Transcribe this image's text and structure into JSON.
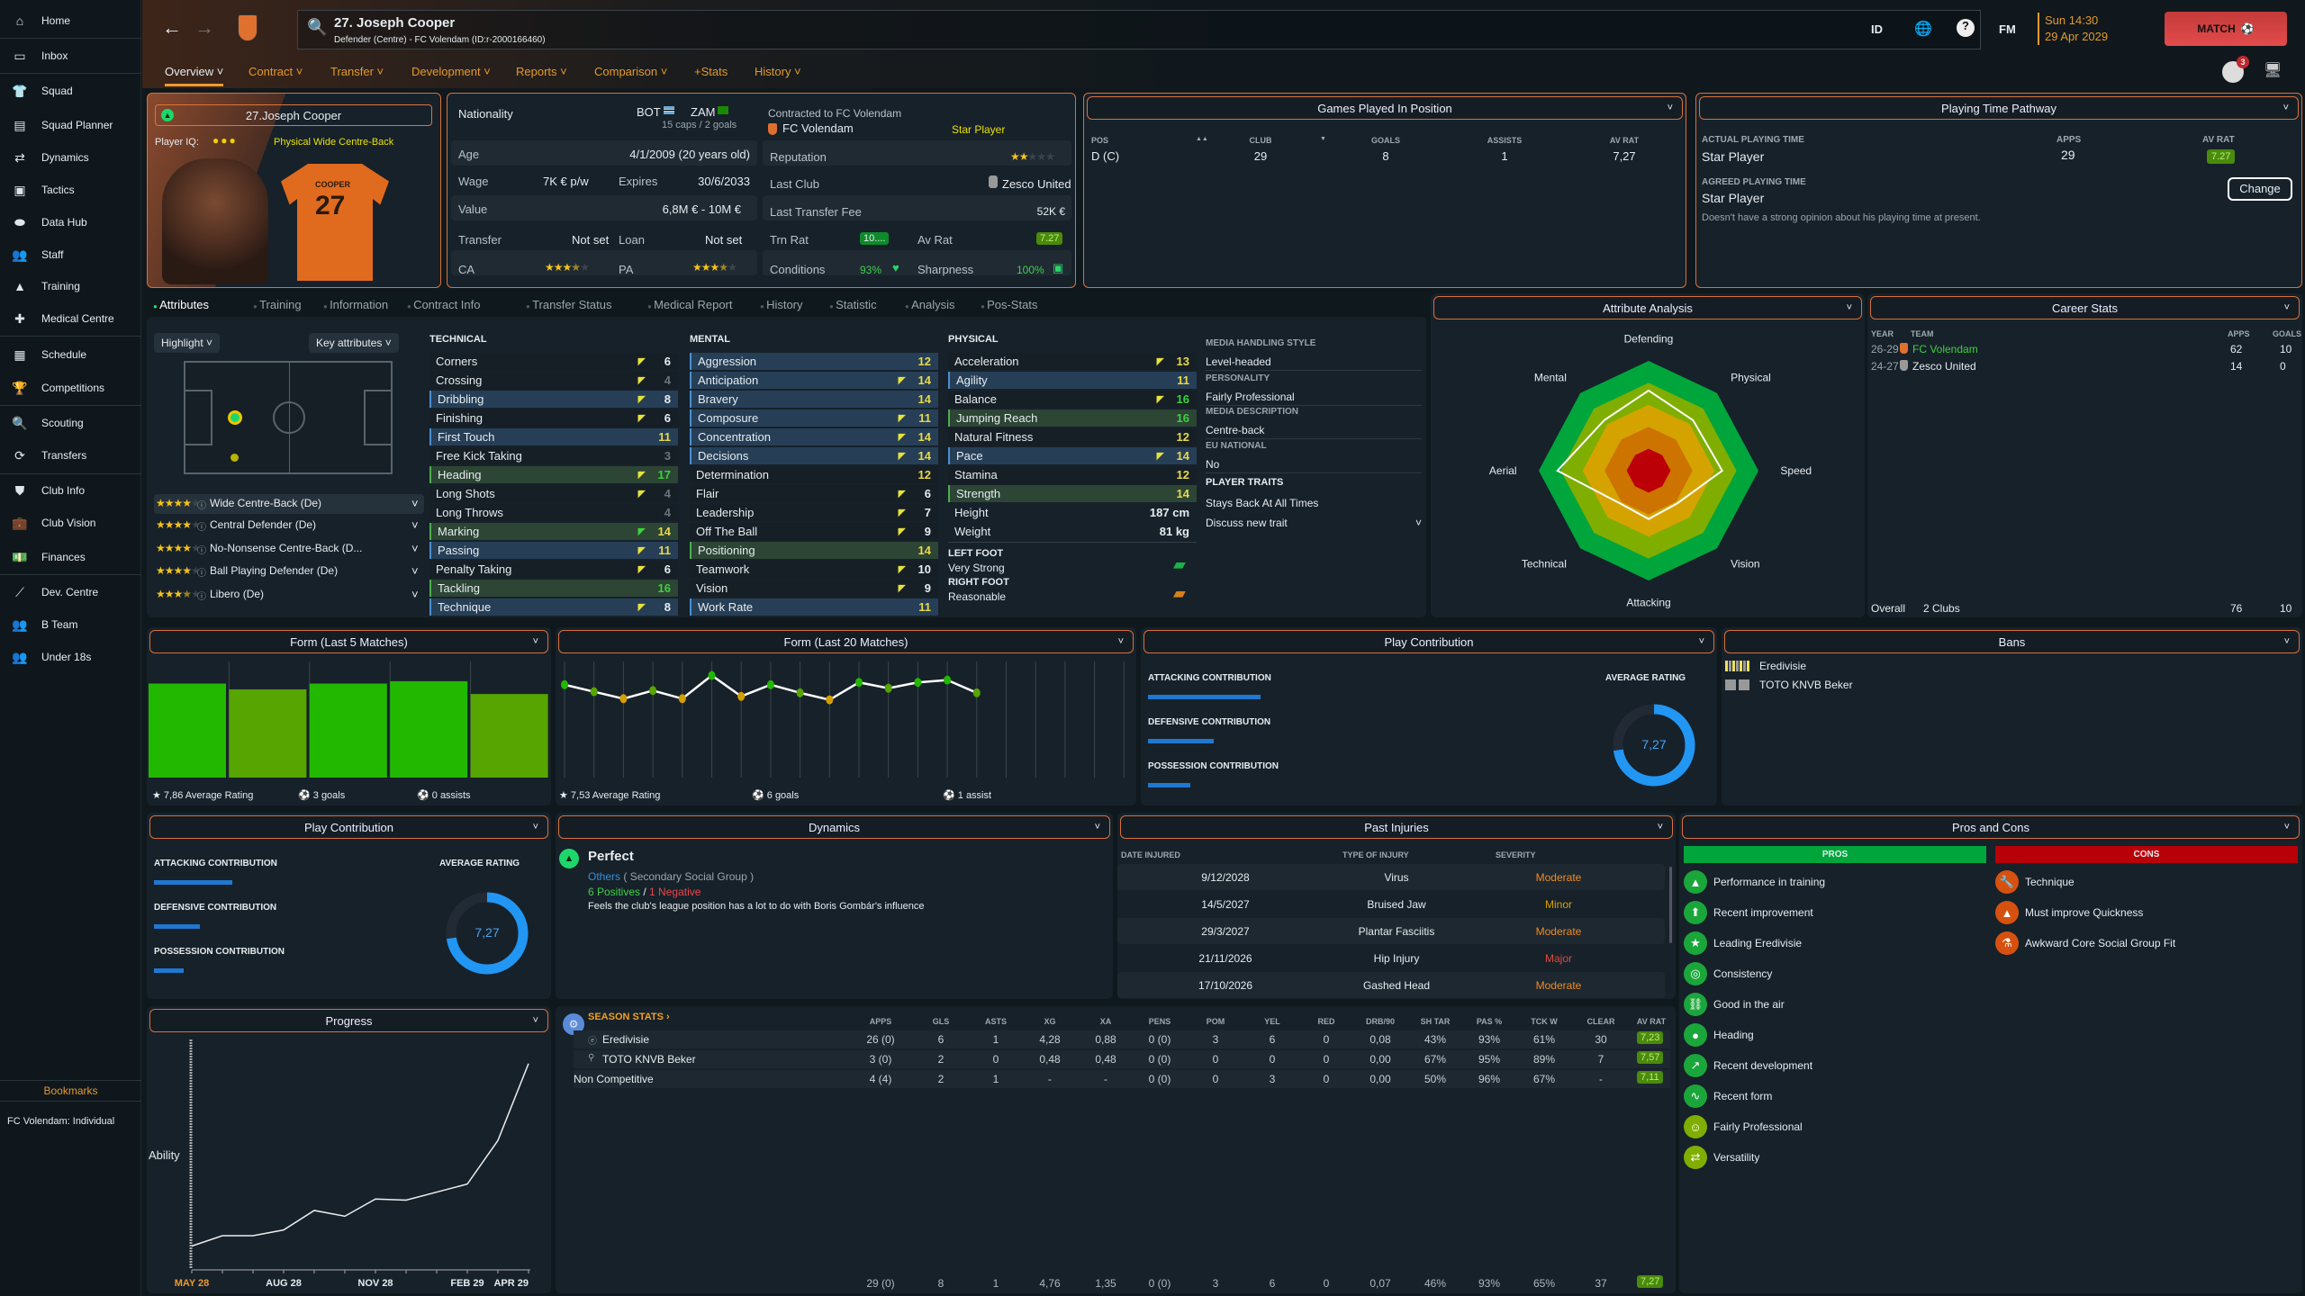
{
  "sidebar": {
    "items": [
      {
        "label": "Home",
        "icon": "home-icon",
        "glyph": "⌂"
      },
      {
        "label": "Inbox",
        "icon": "inbox-icon",
        "glyph": "▭"
      },
      {
        "label": "Squad",
        "icon": "shirt-icon",
        "glyph": "👕"
      },
      {
        "label": "Squad Planner",
        "icon": "clipboard-icon",
        "glyph": "▤"
      },
      {
        "label": "Dynamics",
        "icon": "dynamics-icon",
        "glyph": "⇄"
      },
      {
        "label": "Tactics",
        "icon": "tactics-icon",
        "glyph": "▣"
      },
      {
        "label": "Data Hub",
        "icon": "data-hub-icon",
        "glyph": "⬬"
      },
      {
        "label": "Staff",
        "icon": "staff-icon",
        "glyph": "👥"
      },
      {
        "label": "Training",
        "icon": "training-icon",
        "glyph": "▲"
      },
      {
        "label": "Medical Centre",
        "icon": "medical-icon",
        "glyph": "✚"
      },
      {
        "label": "Schedule",
        "icon": "calendar-icon",
        "glyph": "▦"
      },
      {
        "label": "Competitions",
        "icon": "trophy-icon",
        "glyph": "🏆"
      },
      {
        "label": "Scouting",
        "icon": "search-icon",
        "glyph": "🔍"
      },
      {
        "label": "Transfers",
        "icon": "transfers-icon",
        "glyph": "⟳"
      },
      {
        "label": "Club Info",
        "icon": "shield-icon",
        "glyph": "⛊"
      },
      {
        "label": "Club Vision",
        "icon": "briefcase-icon",
        "glyph": "💼"
      },
      {
        "label": "Finances",
        "icon": "money-icon",
        "glyph": "💵"
      },
      {
        "label": "Dev. Centre",
        "icon": "dev-centre-icon",
        "glyph": "⟋"
      },
      {
        "label": "B Team",
        "icon": "b-team-icon",
        "glyph": "👥"
      },
      {
        "label": "Under 18s",
        "icon": "u18-icon",
        "glyph": "👥"
      }
    ],
    "bookmarks_title": "Bookmarks",
    "bookmark": "FC Volendam: Individual"
  },
  "header": {
    "title": "27. Joseph Cooper",
    "subtitle": "Defender (Centre) - FC Volendam (ID:r-2000166460)",
    "id_label": "ID",
    "fm_label": "FM",
    "time": "Sun 14:30",
    "date": "29 Apr 2029",
    "match_label": "MATCH",
    "notification_count": "3",
    "tabs": [
      "Overview ˅",
      "Contract ˅",
      "Transfer ˅",
      "Development ˅",
      "Reports ˅",
      "Comparison ˅",
      "+Stats",
      "History ˅"
    ]
  },
  "player_card": {
    "name": "27.Joseph Cooper",
    "iq_label": "Player IQ:",
    "iq_dots": 3,
    "role": "Physical Wide Centre-Back",
    "shirt_name": "COOPER",
    "shirt_number": "27"
  },
  "info": {
    "nationality_label": "Nationality",
    "nat1": "BOT",
    "nat2": "ZAM",
    "caps": "15 caps / 2 goals",
    "contracted": "Contracted to FC Volendam",
    "club": "FC Volendam",
    "status": "Star Player",
    "age_label": "Age",
    "age": "4/1/2009 (20 years old)",
    "reputation_label": "Reputation",
    "reputation_stars": 2,
    "wage_label": "Wage",
    "wage": "7K € p/w",
    "expires_label": "Expires",
    "expires": "30/6/2033",
    "last_club_label": "Last Club",
    "last_club": "Zesco United",
    "value_label": "Value",
    "value": "6,8M € - 10M €",
    "fee_label": "Last Transfer Fee",
    "fee": "52K €",
    "transfer_label": "Transfer",
    "transfer": "Not set",
    "loan_label": "Loan",
    "loan": "Not set",
    "trn_label": "Trn Rat",
    "trn": "10....",
    "avrat_label": "Av Rat",
    "avrat": "7.27",
    "ca_label": "CA",
    "ca_stars": 3.5,
    "pa_label": "PA",
    "pa_stars": 3.5,
    "conditions_label": "Conditions",
    "conditions": "93%",
    "sharpness_label": "Sharpness",
    "sharpness": "100%"
  },
  "games_position": {
    "title": "Games Played In Position",
    "headers": [
      "POS",
      "CLUB",
      "GOALS",
      "ASSISTS",
      "AV RAT"
    ],
    "row": [
      "D (C)",
      "29",
      "8",
      "1",
      "7,27"
    ]
  },
  "playing_time": {
    "title": "Playing Time Pathway",
    "actual_label": "ACTUAL PLAYING TIME",
    "apps_label": "APPS",
    "avrat_label": "AV RAT",
    "actual": "Star Player",
    "apps": "29",
    "avrat": "7.27",
    "agreed_label": "AGREED PLAYING TIME",
    "agreed": "Star Player",
    "note": "Doesn't have a strong opinion about his playing time at present.",
    "change_label": "Change"
  },
  "tabs": [
    "Attributes",
    "Training",
    "Information",
    "Contract Info",
    "Transfer Status",
    "Medical Report",
    "History",
    "Statistic",
    "Analysis",
    "Pos-Stats"
  ],
  "attributes": {
    "highlight_label": "Highlight ˅",
    "key_label": "Key attributes ˅",
    "roles": [
      {
        "stars": 4,
        "label": "Wide Centre-Back (De)"
      },
      {
        "stars": 4,
        "label": "Central Defender (De)"
      },
      {
        "stars": 4,
        "label": "No-Nonsense Centre-Back (D..."
      },
      {
        "stars": 4,
        "label": "Ball Playing Defender (De)"
      },
      {
        "stars": 3.5,
        "label": "Libero (De)"
      }
    ],
    "technical_title": "TECHNICAL",
    "mental_title": "MENTAL",
    "physical_title": "PHYSICAL",
    "technical": [
      {
        "n": "Corners",
        "v": 6,
        "a": 1,
        "k": ""
      },
      {
        "n": "Crossing",
        "v": 4,
        "a": 1,
        "k": ""
      },
      {
        "n": "Dribbling",
        "v": 8,
        "a": 1,
        "k": "blue"
      },
      {
        "n": "Finishing",
        "v": 6,
        "a": 1,
        "k": ""
      },
      {
        "n": "First Touch",
        "v": 11,
        "a": 0,
        "k": "blue"
      },
      {
        "n": "Free Kick Taking",
        "v": 3,
        "a": 0,
        "k": ""
      },
      {
        "n": "Heading",
        "v": 17,
        "a": 1,
        "k": "green"
      },
      {
        "n": "Long Shots",
        "v": 4,
        "a": 1,
        "k": ""
      },
      {
        "n": "Long Throws",
        "v": 4,
        "a": 0,
        "k": ""
      },
      {
        "n": "Marking",
        "v": 14,
        "a": 2,
        "k": "green"
      },
      {
        "n": "Passing",
        "v": 11,
        "a": 1,
        "k": "blue"
      },
      {
        "n": "Penalty Taking",
        "v": 6,
        "a": 1,
        "k": ""
      },
      {
        "n": "Tackling",
        "v": 16,
        "a": 0,
        "k": "green"
      },
      {
        "n": "Technique",
        "v": 8,
        "a": 1,
        "k": "blue"
      }
    ],
    "mental": [
      {
        "n": "Aggression",
        "v": 12,
        "a": 0,
        "k": "blue"
      },
      {
        "n": "Anticipation",
        "v": 14,
        "a": 1,
        "k": "blue"
      },
      {
        "n": "Bravery",
        "v": 14,
        "a": 0,
        "k": "blue"
      },
      {
        "n": "Composure",
        "v": 11,
        "a": 1,
        "k": "blue"
      },
      {
        "n": "Concentration",
        "v": 14,
        "a": 1,
        "k": "blue"
      },
      {
        "n": "Decisions",
        "v": 14,
        "a": 1,
        "k": "blue"
      },
      {
        "n": "Determination",
        "v": 12,
        "a": 0,
        "k": ""
      },
      {
        "n": "Flair",
        "v": 6,
        "a": 1,
        "k": ""
      },
      {
        "n": "Leadership",
        "v": 7,
        "a": 1,
        "k": ""
      },
      {
        "n": "Off The Ball",
        "v": 9,
        "a": 1,
        "k": ""
      },
      {
        "n": "Positioning",
        "v": 14,
        "a": 0,
        "k": "green"
      },
      {
        "n": "Teamwork",
        "v": 10,
        "a": 1,
        "k": ""
      },
      {
        "n": "Vision",
        "v": 9,
        "a": 1,
        "k": ""
      },
      {
        "n": "Work Rate",
        "v": 11,
        "a": 0,
        "k": "blue"
      }
    ],
    "physical": [
      {
        "n": "Acceleration",
        "v": 13,
        "a": 1,
        "k": ""
      },
      {
        "n": "Agility",
        "v": 11,
        "a": 0,
        "k": "blue"
      },
      {
        "n": "Balance",
        "v": 16,
        "a": 1,
        "k": ""
      },
      {
        "n": "Jumping Reach",
        "v": 16,
        "a": 0,
        "k": "green"
      },
      {
        "n": "Natural Fitness",
        "v": 12,
        "a": 0,
        "k": ""
      },
      {
        "n": "Pace",
        "v": 14,
        "a": 1,
        "k": "blue"
      },
      {
        "n": "Stamina",
        "v": 12,
        "a": 0,
        "k": ""
      },
      {
        "n": "Strength",
        "v": 14,
        "a": 0,
        "k": "green"
      }
    ],
    "height_label": "Height",
    "height": "187 cm",
    "weight_label": "Weight",
    "weight": "81 kg",
    "left_foot_label": "LEFT FOOT",
    "left_foot": "Very Strong",
    "right_foot_label": "RIGHT FOOT",
    "right_foot": "Reasonable",
    "media": [
      {
        "h": "MEDIA HANDLING STYLE",
        "v": "Level-headed"
      },
      {
        "h": "PERSONALITY",
        "v": "Fairly Professional"
      },
      {
        "h": "MEDIA DESCRIPTION",
        "v": "Centre-back"
      },
      {
        "h": "EU NATIONAL",
        "v": "No"
      }
    ],
    "traits_label": "PLAYER TRAITS",
    "trait": "Stays Back At All Times",
    "discuss": "Discuss new trait"
  },
  "attribute_analysis": {
    "title": "Attribute Analysis",
    "axes": [
      "Defending",
      "Physical",
      "Speed",
      "Vision",
      "Attacking",
      "Technical",
      "Aerial",
      "Mental"
    ],
    "player_values": [
      73,
      65,
      67,
      42,
      44,
      42,
      83,
      65
    ],
    "band_colors": [
      "#00a53c",
      "#7fae00",
      "#d5a300",
      "#cd7300",
      "#bb0007"
    ]
  },
  "career_stats": {
    "title": "Career Stats",
    "headers": [
      "YEAR",
      "TEAM",
      "APPS",
      "GOALS"
    ],
    "rows": [
      {
        "year": "26-29",
        "team": "FC Volendam",
        "apps": "62",
        "goals": "10"
      },
      {
        "year": "24-27",
        "team": "Zesco United",
        "apps": "14",
        "goals": "0"
      }
    ],
    "overall_label": "Overall",
    "overall_clubs": "2 Clubs",
    "overall_apps": "76",
    "overall_goals": "10"
  },
  "chart_data": [
    {
      "type": "bar",
      "title": "Form (Last 5 Matches)",
      "values": [
        8.1,
        7.6,
        8.1,
        8.3,
        7.2
      ],
      "ylim": [
        0,
        10
      ],
      "footer": {
        "rating": "7,86 Average Rating",
        "goals": "3 goals",
        "assists": "0 assists"
      }
    },
    {
      "type": "line",
      "title": "Form (Last 20 Matches)",
      "values": [
        8.0,
        7.4,
        6.8,
        7.5,
        6.8,
        8.8,
        7.0,
        8.0,
        7.3,
        6.7,
        8.2,
        7.7,
        8.2,
        8.4,
        7.3
      ],
      "slots": 20,
      "ylim": [
        0,
        10
      ],
      "footer": {
        "rating": "7,53 Average Rating",
        "goals": "6 goals",
        "assists": "1 assist"
      }
    },
    {
      "type": "line",
      "title": "Progress",
      "ylabel": "Ability",
      "x": [
        "MAY 28",
        "",
        "",
        "AUG 28",
        "",
        "",
        "NOV 28",
        "",
        "",
        "FEB 29",
        "",
        "APR 29"
      ],
      "values": [
        10,
        14.5,
        14.5,
        17,
        25.5,
        23,
        30.5,
        30,
        33.5,
        37,
        56,
        89.5
      ],
      "ylim": [
        0,
        100
      ]
    }
  ],
  "play_contribution": {
    "title": "Play Contribution",
    "attacking": "ATTACKING CONTRIBUTION",
    "defensive": "DEFENSIVE CONTRIBUTION",
    "possession": "POSSESSION CONTRIBUTION",
    "attacking_fill": 0.29,
    "defensive_fill": 0.17,
    "possession_fill": 0.11,
    "avg_label": "AVERAGE RATING",
    "avg": "7,27",
    "avg_value": 7.27
  },
  "bans": {
    "title": "Bans",
    "items": [
      "Eredivisie",
      "TOTO KNVB Beker"
    ]
  },
  "dynamics": {
    "title": "Dynamics",
    "status": "Perfect",
    "group": "Others",
    "group_desc": "( Secondary Social Group )",
    "positives": "6 Positives",
    "sep": " / ",
    "negatives": "1 Negative",
    "note": "Feels the club's league position has a lot to do with Boris Gombár's influence"
  },
  "injuries": {
    "title": "Past Injuries",
    "headers": [
      "DATE INJURED",
      "TYPE OF INJURY",
      "SEVERITY"
    ],
    "rows": [
      [
        "9/12/2028",
        "Virus",
        "Moderate"
      ],
      [
        "14/5/2027",
        "Bruised Jaw",
        "Minor"
      ],
      [
        "29/3/2027",
        "Plantar Fasciitis",
        "Moderate"
      ],
      [
        "21/11/2026",
        "Hip Injury",
        "Major"
      ],
      [
        "17/10/2026",
        "Gashed Head",
        "Moderate"
      ]
    ],
    "severity_colors": {
      "Moderate": "#f08a24",
      "Minor": "#d4a400",
      "Major": "#e0483f"
    }
  },
  "pros_cons": {
    "title": "Pros and Cons",
    "pros_label": "PROS",
    "cons_label": "CONS",
    "pros": [
      {
        "t": "Performance in training",
        "i": "cone-icon",
        "g": "▲"
      },
      {
        "t": "Recent improvement",
        "i": "improvement-icon",
        "g": "⬆"
      },
      {
        "t": "Leading Eredivisie",
        "i": "star-icon",
        "g": "★"
      },
      {
        "t": "Consistency",
        "i": "target-icon",
        "g": "◎"
      },
      {
        "t": "Good in the air",
        "i": "chain-icon",
        "g": "⛓"
      },
      {
        "t": "Heading",
        "i": "heading-icon",
        "g": "●"
      },
      {
        "t": "Recent development",
        "i": "development-icon",
        "g": "↗"
      },
      {
        "t": "Recent form",
        "i": "form-icon",
        "g": "∿"
      },
      {
        "t": "Fairly Professional",
        "i": "head-icon",
        "g": "☺"
      },
      {
        "t": "Versatility",
        "i": "versatility-icon",
        "g": "⇄"
      }
    ],
    "cons": [
      {
        "t": "Technique",
        "i": "wrench-icon",
        "g": "🔧"
      },
      {
        "t": "Must improve Quickness",
        "i": "cone-target-icon",
        "g": "▲"
      },
      {
        "t": "Awkward Core Social Group Fit",
        "i": "flask-icon",
        "g": "⚗"
      }
    ]
  },
  "season_stats": {
    "title": "SEASON STATS ›",
    "headers": [
      "APPS",
      "GLS",
      "ASTS",
      "XG",
      "XA",
      "PENS",
      "POM",
      "YEL",
      "RED",
      "DRB/90",
      "SH TAR",
      "PAS %",
      "TCK W",
      "CLEAR",
      "AV RAT"
    ],
    "rows": [
      {
        "name": "Eredivisie",
        "vals": [
          "26 (0)",
          "6",
          "1",
          "4,28",
          "0,88",
          "0 (0)",
          "3",
          "6",
          "0",
          "0,08",
          "43%",
          "93%",
          "61%",
          "30",
          "7,23"
        ]
      },
      {
        "name": "TOTO KNVB Beker",
        "vals": [
          "3 (0)",
          "2",
          "0",
          "0,48",
          "0,48",
          "0 (0)",
          "0",
          "0",
          "0",
          "0,00",
          "67%",
          "95%",
          "89%",
          "7",
          "7,57"
        ]
      },
      {
        "name": "Non Competitive",
        "vals": [
          "4 (4)",
          "2",
          "1",
          "-",
          "-",
          "0 (0)",
          "0",
          "3",
          "0",
          "0,00",
          "50%",
          "96%",
          "67%",
          "-",
          "7,11"
        ]
      }
    ],
    "totals": [
      "29 (0)",
      "8",
      "1",
      "4,76",
      "1,35",
      "0 (0)",
      "3",
      "6",
      "0",
      "0,07",
      "46%",
      "93%",
      "65%",
      "37",
      "7,27"
    ]
  }
}
